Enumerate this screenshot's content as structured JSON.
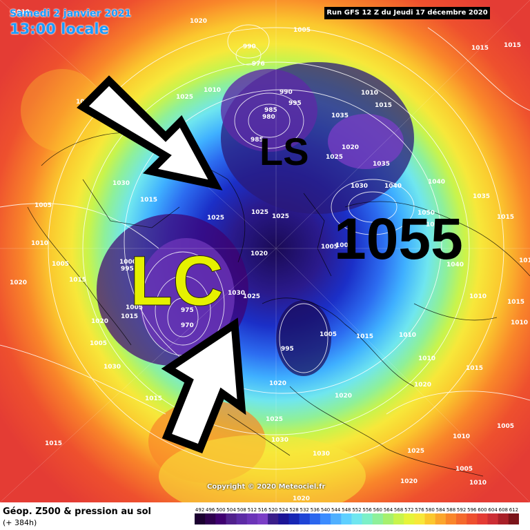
{
  "header": {
    "date": "Samedi 2 janvier 2021",
    "local_time": "13:00 locale",
    "run_info": "Run GFS 12 Z du Jeudi 17 décembre 2020"
  },
  "copyright": "Copyright © 2020 Meteociel.fr",
  "legend": {
    "title": "Géop. Z500 & pression au sol",
    "subtitle": "(+ 384h)",
    "ticks": [
      "492",
      "496",
      "500",
      "504",
      "508",
      "512",
      "516",
      "520",
      "524",
      "528",
      "532",
      "536",
      "540",
      "544",
      "548",
      "552",
      "556",
      "560",
      "564",
      "568",
      "572",
      "576",
      "580",
      "584",
      "588",
      "592",
      "596",
      "600",
      "604",
      "608",
      "612"
    ],
    "colors": [
      "#1b0030",
      "#2e004f",
      "#3f0070",
      "#50208c",
      "#5c2ba5",
      "#6b34b8",
      "#7a3ec6",
      "#3a1e8a",
      "#1c1496",
      "#1626b4",
      "#1e44d6",
      "#2a66ee",
      "#3b8cff",
      "#4fb0ff",
      "#5ed0ff",
      "#6fe6ef",
      "#7cf0c8",
      "#8ef09a",
      "#a6f06e",
      "#c8f44c",
      "#e6f43a",
      "#f7e83a",
      "#fbc82e",
      "#fba62c",
      "#f9862a",
      "#f46a2c",
      "#ee502e",
      "#e43c34",
      "#cc2e34",
      "#a82028",
      "#7a141a"
    ]
  },
  "annotations": {
    "lc": "LC",
    "ls": "LS",
    "high_value": "1055"
  },
  "isobar_labels": [
    "1010",
    "1020",
    "1005",
    "1015",
    "1015",
    "990",
    "976",
    "1010",
    "1025",
    "990",
    "995",
    "1010",
    "1015",
    "1020",
    "985",
    "980",
    "985",
    "1035",
    "1020",
    "1025",
    "1035",
    "1030",
    "1040",
    "1040",
    "1035",
    "1015",
    "1030",
    "1005",
    "1050",
    "1055",
    "1025",
    "1025",
    "1025",
    "1005",
    "1000",
    "1040",
    "1010",
    "1005",
    "1020",
    "1015",
    "1000",
    "995",
    "1010",
    "1030",
    "1025",
    "1010",
    "1005",
    "975",
    "970",
    "1015",
    "1020",
    "995",
    "1005",
    "1015",
    "1010",
    "1010",
    "1025",
    "1030",
    "1015",
    "1020",
    "1030",
    "1015",
    "1030",
    "1030",
    "1015",
    "1020",
    "1020",
    "1005",
    "1010",
    "1005",
    "1025",
    "1010",
    "1015",
    "1020",
    "1015",
    "1005",
    "1010",
    "1020",
    "1020"
  ]
}
